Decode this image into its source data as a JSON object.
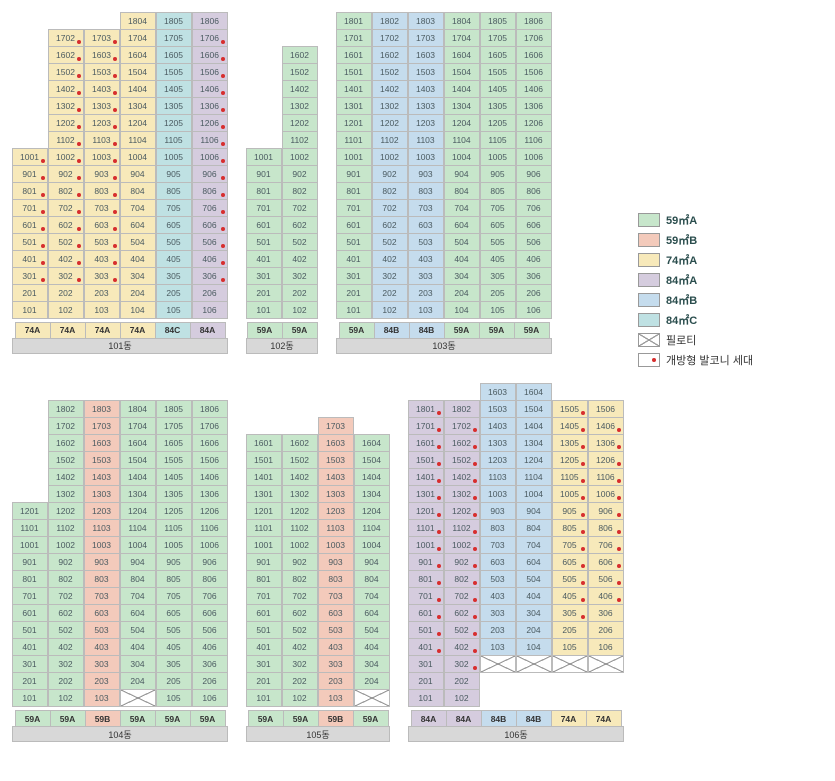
{
  "colors": {
    "59A": "#c7e6cb",
    "59B": "#f3cabb",
    "74A": "#f7e9ba",
    "84A": "#d5ccde",
    "84B": "#c5dced",
    "84C": "#bfe1e3",
    "dot": "#d72e2e"
  },
  "legend": [
    {
      "swatch": "59A",
      "label": "59㎡A"
    },
    {
      "swatch": "59B",
      "label": "59㎡B"
    },
    {
      "swatch": "74A",
      "label": "74㎡A"
    },
    {
      "swatch": "84A",
      "label": "84㎡A"
    },
    {
      "swatch": "84B",
      "label": "84㎡B"
    },
    {
      "swatch": "84C",
      "label": "84㎡C"
    }
  ],
  "legend_piloti": "필로티",
  "legend_balcony": "개방형 발코니 세대",
  "buildings": [
    {
      "name": "101동",
      "cols": 6,
      "col_types": [
        "74A",
        "74A",
        "74A",
        "74A",
        "84C",
        "84A"
      ],
      "max_floor": 18,
      "col_start_floor": [
        1,
        1,
        1,
        1,
        1,
        1
      ],
      "col_top_floor": [
        10,
        17,
        17,
        18,
        18,
        18
      ],
      "balcony_cols": [
        1,
        2,
        3,
        6
      ],
      "balcony_floor_ranges": {
        "1": [
          3,
          10
        ],
        "2": [
          3,
          17
        ],
        "3": [
          3,
          17
        ],
        "6": [
          3,
          17
        ]
      },
      "piloti_cols": []
    },
    {
      "name": "102동",
      "cols": 2,
      "col_types": [
        "59A",
        "59A"
      ],
      "max_floor": 16,
      "col_start_floor": [
        1,
        1
      ],
      "col_top_floor": [
        10,
        16
      ],
      "balcony_cols": [],
      "balcony_floor_ranges": {},
      "piloti_cols": []
    },
    {
      "name": "103동",
      "cols": 6,
      "col_types": [
        "59A",
        "84B",
        "84B",
        "59A",
        "59A",
        "59A"
      ],
      "max_floor": 18,
      "col_start_floor": [
        1,
        1,
        1,
        1,
        1,
        1
      ],
      "col_top_floor": [
        18,
        18,
        18,
        18,
        18,
        18
      ],
      "balcony_cols": [],
      "balcony_floor_ranges": {},
      "piloti_cols": []
    },
    {
      "name": "104동",
      "cols": 6,
      "col_types": [
        "59A",
        "59A",
        "59B",
        "59A",
        "59A",
        "59A"
      ],
      "max_floor": 18,
      "col_start_floor": [
        1,
        1,
        1,
        1,
        1,
        1
      ],
      "col_top_floor": [
        12,
        18,
        18,
        18,
        18,
        18
      ],
      "balcony_cols": [],
      "balcony_floor_ranges": {},
      "piloti_cols": [
        4
      ]
    },
    {
      "name": "105동",
      "cols": 4,
      "col_types": [
        "59A",
        "59A",
        "59B",
        "59A"
      ],
      "max_floor": 17,
      "col_start_floor": [
        1,
        1,
        1,
        1
      ],
      "col_top_floor": [
        16,
        16,
        17,
        16
      ],
      "balcony_cols": [],
      "balcony_floor_ranges": {},
      "piloti_cols": [
        4
      ]
    },
    {
      "name": "106동",
      "cols": 6,
      "col_types": [
        "84A",
        "84A",
        "84B",
        "84B",
        "74A",
        "74A"
      ],
      "max_floor": 18,
      "col_start_floor": [
        1,
        1,
        1,
        1,
        1,
        1
      ],
      "col_top_floor": [
        18,
        18,
        16,
        16,
        15,
        15
      ],
      "balcony_cols": [
        1,
        2,
        5,
        6
      ],
      "balcony_floor_ranges": {
        "1": [
          4,
          18
        ],
        "2": [
          3,
          17
        ],
        "5": [
          3,
          15
        ],
        "6": [
          4,
          15
        ]
      },
      "piloti_cols": [
        3,
        4,
        5,
        6
      ],
      "floor_type_overrides": {
        "3": {
          "from_floor": 1,
          "to_floor": 2,
          "type": "84B"
        },
        "4": {
          "from_floor": 1,
          "to_floor": 2,
          "type": "84B"
        },
        "5": {
          "from_floor": 1,
          "to_floor": 2,
          "type": "74A"
        },
        "6": {
          "from_floor": 1,
          "to_floor": 2,
          "type": "74A"
        }
      },
      "extra_top": {
        "3": {
          "floor": 16,
          "type": "84B"
        },
        "4": {
          "floor": 16,
          "type": "84B"
        }
      },
      "col3_4_shift": true
    }
  ],
  "row_layout": [
    [
      "101동",
      "102동",
      "103동"
    ],
    [
      "104동",
      "105동",
      "106동"
    ]
  ]
}
